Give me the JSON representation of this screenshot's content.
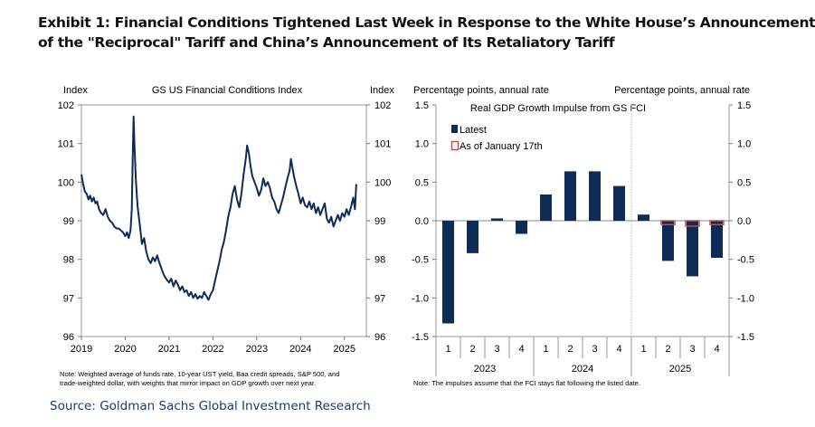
{
  "exhibit": {
    "title_line1": "Exhibit 1: Financial Conditions Tightened Last Week in Response to the White House’s Announcement",
    "title_line2": "of the \"Reciprocal\" Tariff and China’s Announcement of Its Retaliatory Tariff",
    "source": "Source: Goldman Sachs Global Investment Research"
  },
  "chart_data": [
    {
      "type": "line",
      "title": "GS US Financial Conditions Index",
      "ylabel_left": "Index",
      "ylabel_right": "Index",
      "ylim": [
        96,
        102
      ],
      "yticks": [
        "96",
        "97",
        "98",
        "99",
        "100",
        "101",
        "102"
      ],
      "xlim": [
        2019.0,
        2025.5
      ],
      "xticks": [
        "2019",
        "2020",
        "2021",
        "2022",
        "2023",
        "2024",
        "2025"
      ],
      "note": "Note: Weighted average of funds rate, 10-year UST yield, Baa credit spreads, S&P 500, and trade-weighted dollar, with weights that mirror impact on GDP  growth over next year.",
      "series": [
        {
          "color": "#0e2a56",
          "points": [
            [
              2019.0,
              100.2
            ],
            [
              2019.04,
              99.95
            ],
            [
              2019.08,
              99.75
            ],
            [
              2019.12,
              99.7
            ],
            [
              2019.16,
              99.55
            ],
            [
              2019.2,
              99.65
            ],
            [
              2019.24,
              99.5
            ],
            [
              2019.28,
              99.6
            ],
            [
              2019.32,
              99.45
            ],
            [
              2019.36,
              99.5
            ],
            [
              2019.4,
              99.3
            ],
            [
              2019.45,
              99.2
            ],
            [
              2019.5,
              99.15
            ],
            [
              2019.55,
              99.3
            ],
            [
              2019.6,
              99.1
            ],
            [
              2019.65,
              99.0
            ],
            [
              2019.7,
              98.95
            ],
            [
              2019.75,
              98.85
            ],
            [
              2019.8,
              98.8
            ],
            [
              2019.85,
              98.8
            ],
            [
              2019.9,
              98.75
            ],
            [
              2019.95,
              98.7
            ],
            [
              2020.0,
              98.6
            ],
            [
              2020.04,
              98.7
            ],
            [
              2020.08,
              98.55
            ],
            [
              2020.12,
              98.75
            ],
            [
              2020.15,
              99.3
            ],
            [
              2020.17,
              100.6
            ],
            [
              2020.19,
              101.7
            ],
            [
              2020.21,
              101.0
            ],
            [
              2020.24,
              100.1
            ],
            [
              2020.28,
              99.4
            ],
            [
              2020.33,
              98.9
            ],
            [
              2020.38,
              98.4
            ],
            [
              2020.43,
              98.55
            ],
            [
              2020.48,
              98.2
            ],
            [
              2020.53,
              98.0
            ],
            [
              2020.58,
              97.9
            ],
            [
              2020.63,
              98.05
            ],
            [
              2020.68,
              97.95
            ],
            [
              2020.73,
              98.1
            ],
            [
              2020.78,
              97.9
            ],
            [
              2020.83,
              97.75
            ],
            [
              2020.88,
              97.6
            ],
            [
              2020.93,
              97.5
            ],
            [
              2021.0,
              97.4
            ],
            [
              2021.05,
              97.5
            ],
            [
              2021.1,
              97.3
            ],
            [
              2021.15,
              97.45
            ],
            [
              2021.2,
              97.35
            ],
            [
              2021.25,
              97.2
            ],
            [
              2021.3,
              97.3
            ],
            [
              2021.35,
              97.15
            ],
            [
              2021.4,
              97.2
            ],
            [
              2021.45,
              97.05
            ],
            [
              2021.5,
              97.15
            ],
            [
              2021.55,
              97.0
            ],
            [
              2021.6,
              97.1
            ],
            [
              2021.65,
              96.98
            ],
            [
              2021.7,
              97.05
            ],
            [
              2021.75,
              97.0
            ],
            [
              2021.8,
              97.15
            ],
            [
              2021.85,
              97.05
            ],
            [
              2021.9,
              96.95
            ],
            [
              2021.95,
              97.1
            ],
            [
              2022.0,
              97.2
            ],
            [
              2022.05,
              97.45
            ],
            [
              2022.1,
              97.7
            ],
            [
              2022.15,
              97.95
            ],
            [
              2022.2,
              98.25
            ],
            [
              2022.25,
              98.45
            ],
            [
              2022.3,
              98.75
            ],
            [
              2022.35,
              99.1
            ],
            [
              2022.4,
              99.35
            ],
            [
              2022.45,
              99.7
            ],
            [
              2022.5,
              99.9
            ],
            [
              2022.55,
              99.55
            ],
            [
              2022.6,
              99.35
            ],
            [
              2022.65,
              99.7
            ],
            [
              2022.7,
              100.2
            ],
            [
              2022.75,
              100.6
            ],
            [
              2022.78,
              100.95
            ],
            [
              2022.82,
              100.75
            ],
            [
              2022.86,
              100.4
            ],
            [
              2022.9,
              100.15
            ],
            [
              2022.95,
              100.0
            ],
            [
              2023.0,
              99.85
            ],
            [
              2023.05,
              99.65
            ],
            [
              2023.1,
              99.8
            ],
            [
              2023.15,
              100.1
            ],
            [
              2023.2,
              99.9
            ],
            [
              2023.25,
              100.0
            ],
            [
              2023.3,
              99.85
            ],
            [
              2023.35,
              99.6
            ],
            [
              2023.4,
              99.5
            ],
            [
              2023.45,
              99.3
            ],
            [
              2023.5,
              99.2
            ],
            [
              2023.55,
              99.4
            ],
            [
              2023.6,
              99.6
            ],
            [
              2023.65,
              99.85
            ],
            [
              2023.7,
              100.1
            ],
            [
              2023.75,
              100.3
            ],
            [
              2023.78,
              100.6
            ],
            [
              2023.81,
              100.4
            ],
            [
              2023.85,
              100.15
            ],
            [
              2023.9,
              99.9
            ],
            [
              2023.95,
              99.7
            ],
            [
              2024.0,
              99.45
            ],
            [
              2024.05,
              99.6
            ],
            [
              2024.1,
              99.4
            ],
            [
              2024.15,
              99.35
            ],
            [
              2024.2,
              99.5
            ],
            [
              2024.25,
              99.3
            ],
            [
              2024.3,
              99.45
            ],
            [
              2024.35,
              99.2
            ],
            [
              2024.4,
              99.35
            ],
            [
              2024.45,
              99.15
            ],
            [
              2024.5,
              99.3
            ],
            [
              2024.55,
              99.45
            ],
            [
              2024.6,
              99.05
            ],
            [
              2024.65,
              98.95
            ],
            [
              2024.7,
              99.1
            ],
            [
              2024.75,
              98.85
            ],
            [
              2024.8,
              99.0
            ],
            [
              2024.85,
              99.15
            ],
            [
              2024.9,
              99.0
            ],
            [
              2024.95,
              99.2
            ],
            [
              2025.0,
              99.1
            ],
            [
              2025.05,
              99.3
            ],
            [
              2025.1,
              99.15
            ],
            [
              2025.15,
              99.35
            ],
            [
              2025.2,
              99.6
            ],
            [
              2025.24,
              99.3
            ],
            [
              2025.27,
              99.95
            ]
          ]
        }
      ]
    },
    {
      "type": "bar",
      "title": "Real GDP Growth Impulse from GS FCI",
      "ylabel_left": "Percentage points, annual rate",
      "ylabel_right": "Percentage points, annual rate",
      "ylim": [
        -1.5,
        1.5
      ],
      "yticks": [
        "1.5",
        "1.0",
        "0.5",
        "0.0",
        "-0.5",
        "-1.0",
        "-1.5"
      ],
      "categories": [
        "1",
        "2",
        "3",
        "4",
        "1",
        "2",
        "3",
        "4",
        "1",
        "2",
        "3",
        "4"
      ],
      "groups": [
        {
          "label": "2023",
          "start": 0,
          "end": 3
        },
        {
          "label": "2024",
          "start": 4,
          "end": 7
        },
        {
          "label": "2025",
          "start": 8,
          "end": 11
        }
      ],
      "note": "Note: The impulses assume that the FCI stays flat following the listed date.",
      "legend_position": "top-left",
      "series": [
        {
          "name": "Latest",
          "color": "#0e2a56",
          "values": [
            -1.33,
            -0.42,
            0.03,
            -0.17,
            0.34,
            0.64,
            0.64,
            0.45,
            0.08,
            -0.52,
            -0.72,
            -0.48
          ]
        },
        {
          "name": "As of January 17th",
          "color": "#c0504d",
          "values": [
            null,
            null,
            null,
            null,
            null,
            null,
            null,
            null,
            null,
            -0.05,
            -0.07,
            -0.05
          ]
        }
      ]
    }
  ]
}
